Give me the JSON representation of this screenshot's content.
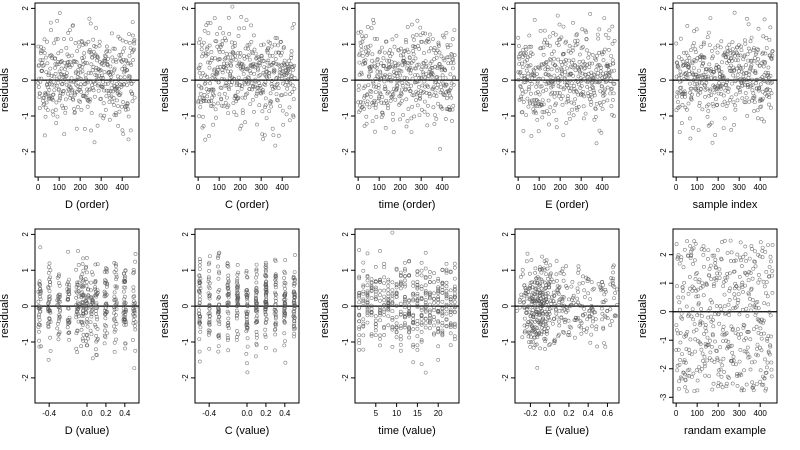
{
  "colors": {
    "point": "#555555",
    "axis": "#000000",
    "zero_line": "#000000",
    "background": "#ffffff"
  },
  "chart_data": [
    {
      "id": "p1",
      "type": "scatter",
      "xlabel": "D (order)",
      "ylabel": "residuals",
      "xlim": [
        -15,
        480
      ],
      "ylim": [
        -2.7,
        2.15
      ],
      "xticks": [
        0,
        100,
        200,
        300,
        400
      ],
      "yticks": [
        -2,
        -1,
        0,
        1,
        2
      ],
      "hline": 0,
      "n": 460,
      "pattern": "order",
      "seed": 11
    },
    {
      "id": "p2",
      "type": "scatter",
      "xlabel": "C (order)",
      "ylabel": "residuals",
      "xlim": [
        -15,
        480
      ],
      "ylim": [
        -2.7,
        2.15
      ],
      "xticks": [
        0,
        100,
        200,
        300,
        400
      ],
      "yticks": [
        -2,
        -1,
        0,
        1,
        2
      ],
      "hline": 0,
      "n": 460,
      "pattern": "order",
      "seed": 23
    },
    {
      "id": "p3",
      "type": "scatter",
      "xlabel": "time (order)",
      "ylabel": "residuals",
      "xlim": [
        -15,
        480
      ],
      "ylim": [
        -2.7,
        2.15
      ],
      "xticks": [
        0,
        100,
        200,
        300,
        400
      ],
      "yticks": [
        -2,
        -1,
        0,
        1,
        2
      ],
      "hline": 0,
      "n": 460,
      "pattern": "order",
      "seed": 37
    },
    {
      "id": "p4",
      "type": "scatter",
      "xlabel": "E (order)",
      "ylabel": "residuals",
      "xlim": [
        -15,
        480
      ],
      "ylim": [
        -2.7,
        2.15
      ],
      "xticks": [
        0,
        100,
        200,
        300,
        400
      ],
      "yticks": [
        -2,
        -1,
        0,
        1,
        2
      ],
      "hline": 0,
      "n": 460,
      "pattern": "order",
      "seed": 41
    },
    {
      "id": "p5",
      "type": "scatter",
      "xlabel": "sample index",
      "ylabel": "residuals",
      "xlim": [
        -15,
        480
      ],
      "ylim": [
        -2.7,
        2.15
      ],
      "xticks": [
        0,
        100,
        200,
        300,
        400
      ],
      "yticks": [
        -2,
        -1,
        0,
        1,
        2
      ],
      "hline": 0,
      "n": 460,
      "pattern": "order",
      "seed": 53
    },
    {
      "id": "p6",
      "type": "scatter",
      "xlabel": "D (value)",
      "ylabel": "residuals",
      "xlim": [
        -0.55,
        0.55
      ],
      "ylim": [
        -2.7,
        2.15
      ],
      "xticks": [
        -0.4,
        0.0,
        0.2,
        0.4
      ],
      "xticklabels": [
        "-0.4",
        "0.0",
        "0.2",
        "0.4"
      ],
      "yticks": [
        -2,
        -1,
        0,
        1,
        2
      ],
      "hline": 0,
      "n": 460,
      "pattern": "grouped",
      "groups": [
        -0.5,
        -0.4,
        -0.3,
        -0.2,
        -0.1,
        -0.05,
        0.0,
        0.05,
        0.1,
        0.2,
        0.3,
        0.4,
        0.5
      ],
      "spread": 0.015,
      "seed": 61
    },
    {
      "id": "p7",
      "type": "scatter",
      "xlabel": "C (value)",
      "ylabel": "residuals",
      "xlim": [
        -0.55,
        0.55
      ],
      "ylim": [
        -2.7,
        2.15
      ],
      "xticks": [
        -0.4,
        0.0,
        0.2,
        0.4
      ],
      "xticklabels": [
        "-0.4",
        "0.0",
        "0.2",
        "0.4"
      ],
      "yticks": [
        -2,
        -1,
        0,
        1,
        2
      ],
      "hline": 0,
      "n": 460,
      "pattern": "grouped",
      "groups": [
        -0.5,
        -0.4,
        -0.3,
        -0.2,
        -0.1,
        0.0,
        0.1,
        0.2,
        0.3,
        0.4,
        0.5
      ],
      "spread": 0.008,
      "seed": 71
    },
    {
      "id": "p8",
      "type": "scatter",
      "xlabel": "time (value)",
      "ylabel": "residuals",
      "xlim": [
        0,
        25
      ],
      "ylim": [
        -2.7,
        2.15
      ],
      "xticks": [
        5,
        10,
        15,
        20
      ],
      "yticks": [
        -2,
        -1,
        0,
        1,
        2
      ],
      "hline": 0,
      "n": 460,
      "pattern": "grouped",
      "groups": [
        1,
        2,
        3,
        4,
        5,
        6,
        7,
        8,
        9,
        10,
        11,
        12,
        13,
        14,
        15,
        16,
        17,
        18,
        19,
        20,
        21,
        22,
        23,
        24
      ],
      "spread": 0.0,
      "seed": 83
    },
    {
      "id": "p9",
      "type": "scatter",
      "xlabel": "E (value)",
      "ylabel": "residuals",
      "xlim": [
        -0.36,
        0.72
      ],
      "ylim": [
        -2.7,
        2.15
      ],
      "xticks": [
        -0.2,
        0.0,
        0.2,
        0.4,
        0.6
      ],
      "xticklabels": [
        "-0.2",
        "0.0",
        "0.2",
        "0.4",
        "0.6"
      ],
      "yticks": [
        -2,
        -1,
        0,
        1,
        2
      ],
      "hline": 0,
      "n": 460,
      "pattern": "skewed",
      "seed": 97
    },
    {
      "id": "p10",
      "type": "scatter",
      "xlabel": "randam example",
      "ylabel": "residuals",
      "xlim": [
        -15,
        480
      ],
      "ylim": [
        -3.2,
        2.9
      ],
      "xticks": [
        0,
        100,
        200,
        300,
        400
      ],
      "yticks": [
        -3,
        -2,
        -1,
        0,
        1,
        2
      ],
      "hline": 0,
      "n": 460,
      "pattern": "uniform",
      "seed": 101
    }
  ]
}
